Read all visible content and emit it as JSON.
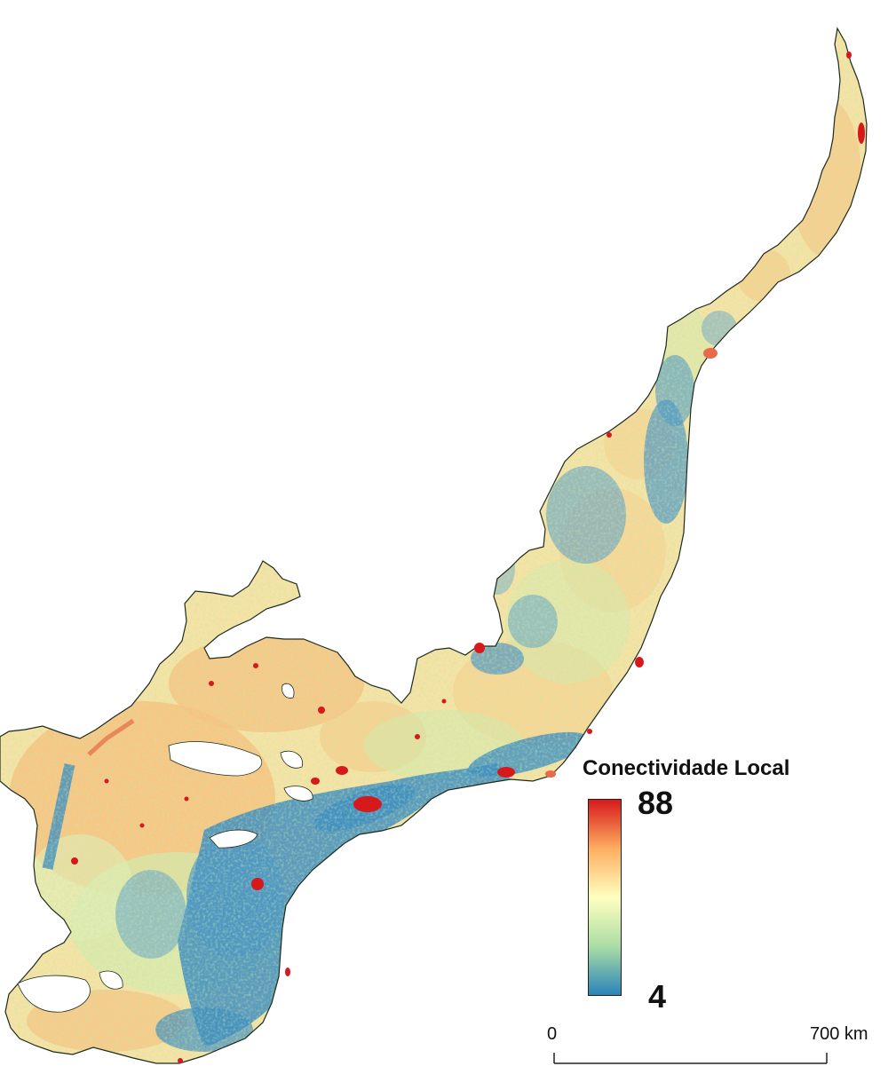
{
  "legend": {
    "title": "Conectividade Local",
    "max_label": "88",
    "min_label": "4",
    "max_value": 88,
    "min_value": 4,
    "ramp_colors": [
      "#d7191c",
      "#fdae61",
      "#ffffbf",
      "#abdda4",
      "#2b83ba"
    ]
  },
  "scale_bar": {
    "start_label": "0",
    "end_label": "700 km"
  }
}
